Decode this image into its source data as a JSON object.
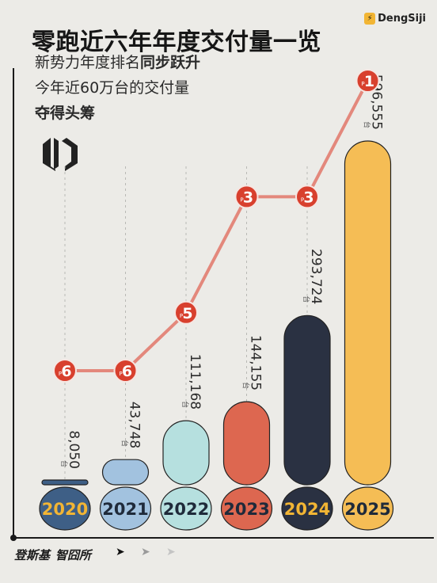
{
  "header": {
    "title": "零跑近六年年度交付量一览",
    "subtitle_1_plain": "新势力年度排名",
    "subtitle_1_bold": "同步跃升",
    "subtitle_2": "今年近60万台的交付量",
    "subtitle_3": "夺得头筹"
  },
  "brand": {
    "icon_glyph": "⚡",
    "name": "DengSiji"
  },
  "footer": {
    "logo_1": "登斯基",
    "logo_2": "智囧所",
    "arrows": [
      "➤",
      "➤",
      "➤"
    ]
  },
  "icons": {
    "brand": "lightning-icon",
    "company_logo": "leapmotor-logo-icon",
    "nav": "chevron-right-icon"
  },
  "chart_data": {
    "type": "bar",
    "categories": [
      "2020",
      "2021",
      "2022",
      "2023",
      "2024",
      "2025"
    ],
    "values": [
      8050,
      43748,
      111168,
      144155,
      293724,
      596555
    ],
    "value_labels": [
      "8,050",
      "43,748",
      "111,168",
      "144,155",
      "293,724",
      "596,555"
    ],
    "unit": "台",
    "rank_prefix": "P",
    "ranks": [
      6,
      6,
      5,
      3,
      3,
      1
    ],
    "bar_colors": [
      "#3e5f86",
      "#a2c2df",
      "#b6e0df",
      "#dd6750",
      "#2a3142",
      "#f5bd55"
    ],
    "year_text_colors": [
      "#f2b534",
      "#1f2a3a",
      "#1f2a3a",
      "#1f2a3a",
      "#f2b534",
      "#1f2a3a"
    ],
    "rank_line_color": "#e3887c",
    "rank_marker_color": "#d8402e"
  }
}
